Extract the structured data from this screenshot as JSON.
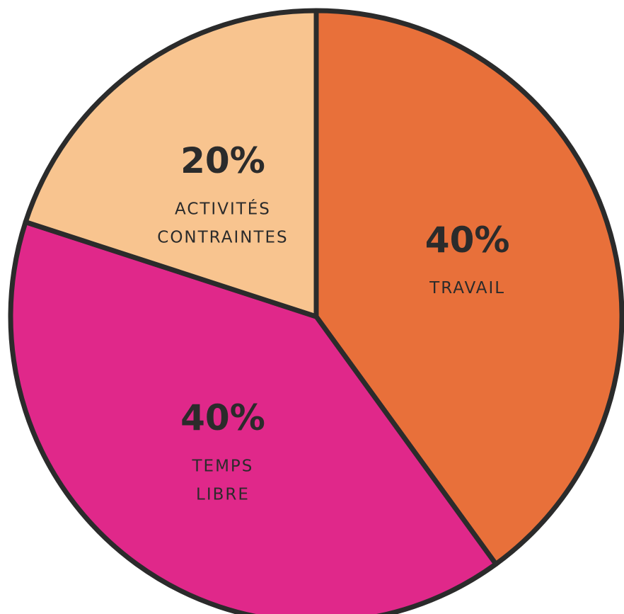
{
  "chart_data": {
    "type": "pie",
    "categories": [
      "TRAVAIL",
      "TEMPS LIBRE",
      "ACTIVITÉS CONTRAINTES"
    ],
    "values": [
      40,
      40,
      20
    ],
    "value_labels": [
      "40%",
      "40%",
      "20%"
    ],
    "colors": [
      "#e8703a",
      "#e0288a",
      "#f8c48f"
    ]
  }
}
